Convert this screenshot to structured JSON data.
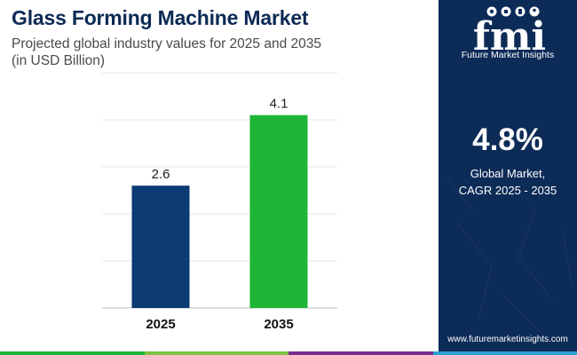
{
  "header": {
    "title": "Glass Forming Machine Market",
    "subtitle_line1": "Projected global industry values for 2025 and 2035",
    "subtitle_line2": "(in USD Billion)"
  },
  "chart_data": {
    "type": "bar",
    "categories": [
      "2025",
      "2035"
    ],
    "values": [
      2.6,
      4.1
    ],
    "value_labels": [
      "2.6",
      "4.1"
    ],
    "ylim": [
      0,
      5
    ],
    "grid": true,
    "bar_colors": [
      "#0c3a73",
      "#1db535"
    ]
  },
  "side_panel": {
    "logo_text": "fmi",
    "logo_caption": "Future Market Insights",
    "cagr_value": "4.8%",
    "cagr_label_line1": "Global Market,",
    "cagr_label_line2": "CAGR 2025 - 2035",
    "website": "www.futuremarketinsights.com"
  },
  "colors": {
    "title": "#0c2a55",
    "panel": "#0d2b57",
    "strip": [
      "#1db535",
      "#7cc142",
      "#7a2f8e",
      "#2a9fd6"
    ]
  }
}
